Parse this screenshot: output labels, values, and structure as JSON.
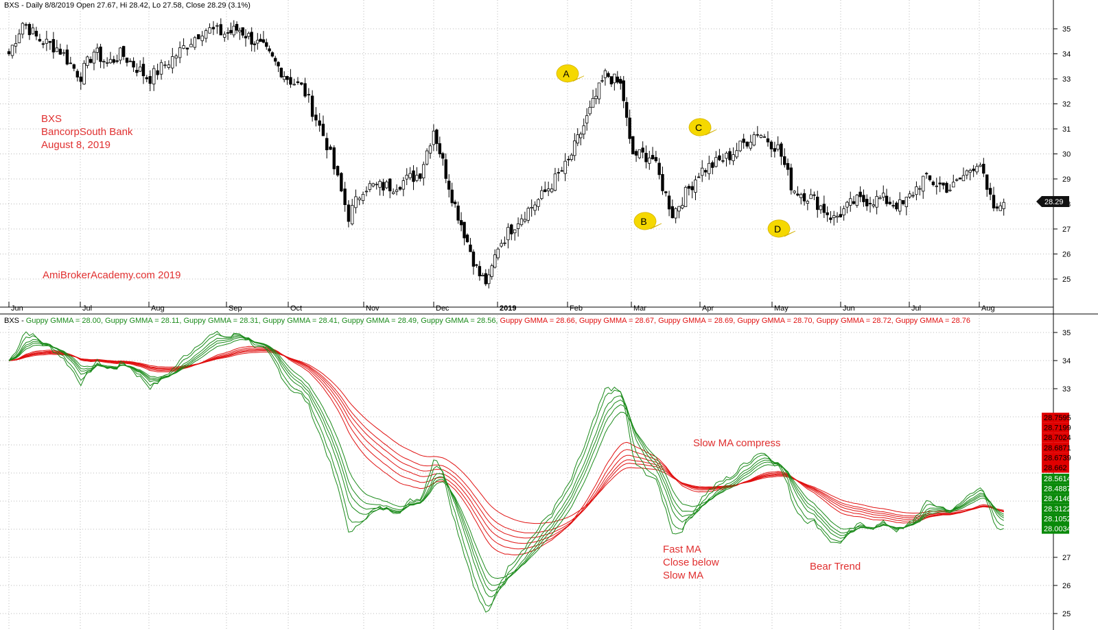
{
  "colors": {
    "up": "#000000",
    "down": "#000000",
    "fast": "#1a8a1a",
    "slow": "#e01010",
    "annotation": "#e03030",
    "callout": "#f5d800",
    "grid": "#b8b8b8"
  },
  "header_price": "BXS - Daily 8/8/2019 Open 27.67, Hi 28.42, Lo 27.58, Close 28.29 (3.1%)",
  "header_gmma": {
    "prefix": "BXS - ",
    "items": [
      {
        "text": "Guppy GMMA = 28.00,",
        "color": "#1a8a1a"
      },
      {
        "text": "Guppy GMMA = 28.11,",
        "color": "#1a8a1a"
      },
      {
        "text": "Guppy GMMA = 28.31,",
        "color": "#1a8a1a"
      },
      {
        "text": "Guppy GMMA = 28.41,",
        "color": "#1a8a1a"
      },
      {
        "text": "Guppy GMMA = 28.49,",
        "color": "#1a8a1a"
      },
      {
        "text": "Guppy GMMA = 28.56,",
        "color": "#1a8a1a"
      },
      {
        "text": "Guppy GMMA = 28.66,",
        "color": "#e01010"
      },
      {
        "text": "Guppy GMMA = 28.67,",
        "color": "#e01010"
      },
      {
        "text": "Guppy GMMA = 28.69,",
        "color": "#e01010"
      },
      {
        "text": "Guppy GMMA = 28.70,",
        "color": "#e01010"
      },
      {
        "text": "Guppy GMMA = 28.72,",
        "color": "#e01010"
      },
      {
        "text": "Guppy GMMA = 28.76",
        "color": "#e01010"
      }
    ]
  },
  "stock_info": [
    "BXS",
    "BancorpSouth Bank",
    "August 8, 2019"
  ],
  "watermark": "AmiBrokerAcademy.com   2019",
  "callouts": [
    "A",
    "B",
    "C",
    "D"
  ],
  "gmma_annotations": {
    "compress": "Slow MA compress",
    "fast_close": [
      "Fast MA",
      "Close below",
      "Slow MA"
    ],
    "bear": "Bear Trend"
  },
  "last_close_label": "28.29",
  "slow_labels": [
    "28.7595",
    "28.7199",
    "28.7024",
    "28.6871",
    "28.6739",
    "28.662"
  ],
  "fast_labels": [
    "28.5614",
    "28.4887",
    "28.4146",
    "28.3122",
    "28.1052",
    "28.0034"
  ],
  "chart_data": {
    "type": "candlestick",
    "symbol": "BXS",
    "period": "Daily",
    "months": [
      "Jun",
      "Jul",
      "Aug",
      "Sep",
      "Oct",
      "Nov",
      "Dec",
      "2019",
      "Feb",
      "Mar",
      "Apr",
      "May",
      "Jun",
      "Jul",
      "Aug"
    ],
    "price_axis": {
      "ylim": [
        24.2,
        36.2
      ],
      "ticks": [
        25,
        26,
        27,
        28,
        29,
        30,
        31,
        32,
        33,
        34,
        35
      ]
    },
    "gmma_axis": {
      "ylim": [
        24.9,
        35.4
      ],
      "ticks": [
        25,
        26,
        27,
        33,
        34,
        35
      ]
    },
    "closing_path": [
      {
        "month": 0,
        "price": 34.0
      },
      {
        "month": 0.2,
        "price": 35.3
      },
      {
        "month": 0.4,
        "price": 34.6
      },
      {
        "month": 0.7,
        "price": 34.2
      },
      {
        "month": 1.0,
        "price": 33.1
      },
      {
        "month": 1.2,
        "price": 34.1
      },
      {
        "month": 1.4,
        "price": 33.6
      },
      {
        "month": 1.6,
        "price": 34.0
      },
      {
        "month": 2.0,
        "price": 33.0
      },
      {
        "month": 2.4,
        "price": 34.1
      },
      {
        "month": 2.7,
        "price": 35.0
      },
      {
        "month": 3.0,
        "price": 34.8
      },
      {
        "month": 3.2,
        "price": 35.0
      },
      {
        "month": 3.6,
        "price": 34.2
      },
      {
        "month": 4.0,
        "price": 33.0
      },
      {
        "month": 4.2,
        "price": 32.6
      },
      {
        "month": 4.5,
        "price": 30.5
      },
      {
        "month": 4.8,
        "price": 27.5
      },
      {
        "month": 5.0,
        "price": 28.7
      },
      {
        "month": 5.4,
        "price": 28.7
      },
      {
        "month": 5.8,
        "price": 29.2
      },
      {
        "month": 6.0,
        "price": 31.0
      },
      {
        "month": 6.3,
        "price": 28.2
      },
      {
        "month": 6.7,
        "price": 25.2
      },
      {
        "month": 6.85,
        "price": 24.8
      },
      {
        "month": 7.0,
        "price": 26.3
      },
      {
        "month": 7.3,
        "price": 27.4
      },
      {
        "month": 7.6,
        "price": 28.2
      },
      {
        "month": 8.0,
        "price": 29.6
      },
      {
        "month": 8.3,
        "price": 31.4
      },
      {
        "month": 8.6,
        "price": 33.2
      },
      {
        "month": 8.85,
        "price": 32.7
      },
      {
        "month": 9.0,
        "price": 30.0
      },
      {
        "month": 9.3,
        "price": 29.9
      },
      {
        "month": 9.6,
        "price": 27.6
      },
      {
        "month": 10.0,
        "price": 29.3
      },
      {
        "month": 10.4,
        "price": 29.9
      },
      {
        "month": 10.8,
        "price": 30.9
      },
      {
        "month": 11.1,
        "price": 30.2
      },
      {
        "month": 11.3,
        "price": 28.6
      },
      {
        "month": 11.6,
        "price": 28.2
      },
      {
        "month": 11.9,
        "price": 27.4
      },
      {
        "month": 12.2,
        "price": 28.1
      },
      {
        "month": 12.6,
        "price": 28.2
      },
      {
        "month": 12.9,
        "price": 27.9
      },
      {
        "month": 13.2,
        "price": 29.0
      },
      {
        "month": 13.6,
        "price": 28.6
      },
      {
        "month": 14.0,
        "price": 29.8
      },
      {
        "month": 14.1,
        "price": 28.5
      },
      {
        "month": 14.25,
        "price": 27.6
      },
      {
        "month": 14.35,
        "price": 28.29
      }
    ],
    "callout_points": [
      {
        "label": "A",
        "month": 8.0,
        "price": 33.2
      },
      {
        "label": "B",
        "month": 9.2,
        "price": 27.3
      },
      {
        "label": "C",
        "month": 10.0,
        "price": 31.05
      },
      {
        "label": "D",
        "month": 11.1,
        "price": 27.0
      }
    ]
  }
}
